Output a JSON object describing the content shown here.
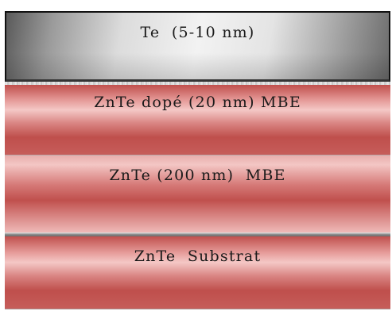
{
  "layers": {
    "te": {
      "label": "Te  (5-10 nm)"
    },
    "zntedope": {
      "label": "ZnTe dopé (20 nm) MBE"
    },
    "znte_mbe": {
      "label": "ZnTe (200 nm)  MBE"
    },
    "substrate": {
      "label": "ZnTe  Substrat"
    }
  },
  "colors": {
    "te_layer": "#d9d9d9",
    "znte_layers": "#c0504d",
    "border": "#111111"
  }
}
